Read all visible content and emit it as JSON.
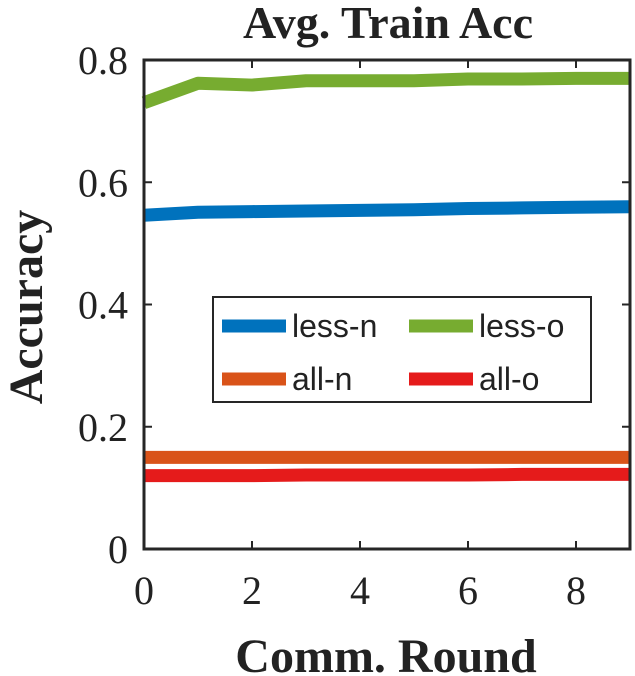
{
  "chart_data": {
    "type": "line",
    "title": "Avg. Train Acc",
    "xlabel": "Comm. Round",
    "ylabel": "Accuracy",
    "xlim": [
      0,
      9
    ],
    "ylim": [
      0,
      0.8
    ],
    "x": [
      0,
      1,
      2,
      3,
      4,
      5,
      6,
      7,
      8,
      9
    ],
    "x_ticks": [
      "0",
      "2",
      "4",
      "6",
      "8"
    ],
    "x_tick_values": [
      0,
      2,
      4,
      6,
      8
    ],
    "y_ticks": [
      "0",
      "0.2",
      "0.4",
      "0.6",
      "0.8"
    ],
    "y_tick_values": [
      0,
      0.2,
      0.4,
      0.6,
      0.8
    ],
    "grid": false,
    "legend_position": "center-right",
    "series": [
      {
        "name": "less-n",
        "color": "#0072BD",
        "values": [
          0.546,
          0.551,
          0.552,
          0.553,
          0.554,
          0.555,
          0.557,
          0.558,
          0.559,
          0.56
        ]
      },
      {
        "name": "less-o",
        "color": "#77AC30",
        "values": [
          0.73,
          0.762,
          0.759,
          0.766,
          0.766,
          0.766,
          0.769,
          0.769,
          0.77,
          0.77
        ]
      },
      {
        "name": "all-n",
        "color": "#D95319",
        "values": [
          0.15,
          0.15,
          0.15,
          0.15,
          0.15,
          0.15,
          0.15,
          0.15,
          0.15,
          0.15
        ]
      },
      {
        "name": "all-o",
        "color": "#E51B1B",
        "values": [
          0.12,
          0.12,
          0.12,
          0.121,
          0.121,
          0.121,
          0.121,
          0.122,
          0.122,
          0.122
        ]
      }
    ]
  }
}
